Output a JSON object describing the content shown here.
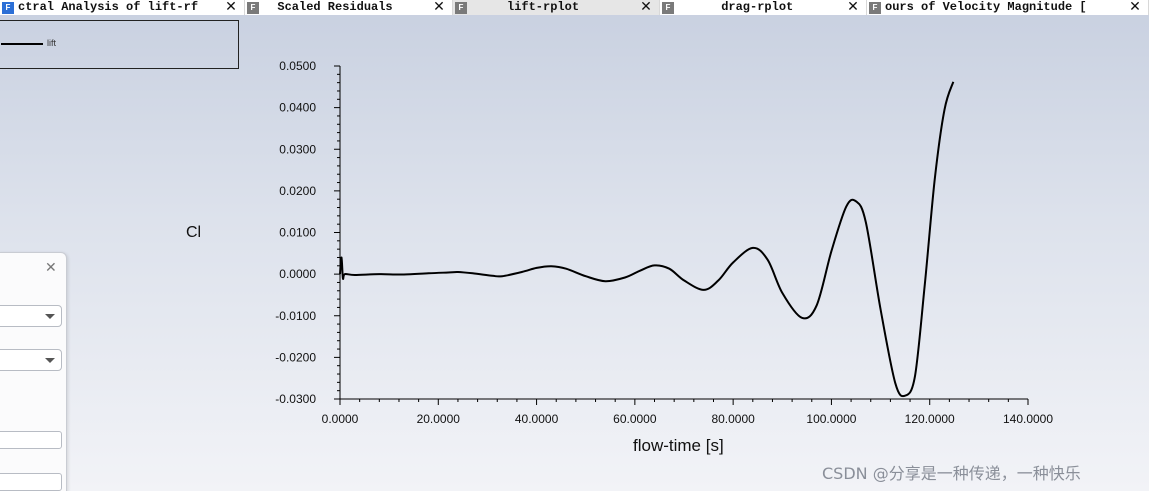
{
  "tabs": [
    {
      "label": "ctral Analysis of lift-rf",
      "icon": "fluent-window-icon",
      "icon_color": "#2b6fd6",
      "active": false
    },
    {
      "label": "  Scaled Residuals",
      "icon": "fluent-window-icon",
      "icon_color": "#7a7a7a",
      "active": false
    },
    {
      "label": "     lift-rplot",
      "icon": "fluent-window-icon",
      "icon_color": "#7a7a7a",
      "active": true
    },
    {
      "label": "      drag-rplot",
      "icon": "fluent-window-icon",
      "icon_color": "#7a7a7a",
      "active": false
    },
    {
      "label": "ours of Velocity Magnitude [",
      "icon": "fluent-window-icon",
      "icon_color": "#7a7a7a",
      "active": false
    }
  ],
  "tab_close_glyph": "✕",
  "icon_letter": "F",
  "legend": {
    "series_label": "lift"
  },
  "panel": {
    "close_glyph": "✕"
  },
  "watermark": "CSDN @分享是一种传递，一种快乐",
  "chart_data": {
    "type": "line",
    "xlabel": "flow-time [s]",
    "ylabel": "Cl",
    "xlim": [
      0,
      140
    ],
    "ylim": [
      -0.03,
      0.05
    ],
    "x_ticks": [
      "0.0000",
      "20.0000",
      "40.0000",
      "60.0000",
      "80.0000",
      "100.0000",
      "120.0000",
      "140.0000"
    ],
    "y_ticks": [
      "0.0500",
      "0.0400",
      "0.0300",
      "0.0200",
      "0.0100",
      "0.0000",
      "-0.0100",
      "-0.0200",
      "-0.0300"
    ],
    "series": [
      {
        "name": "lift",
        "color": "#000000",
        "x": [
          0,
          0.3,
          0.6,
          1,
          3,
          8,
          13,
          18,
          22,
          24,
          27,
          31,
          33,
          37,
          40,
          43,
          46,
          50,
          54,
          58,
          61,
          64,
          67,
          70,
          74,
          77,
          80,
          84,
          87,
          90,
          94,
          97,
          100,
          103,
          105,
          107,
          110,
          113,
          115,
          117,
          119,
          121,
          123,
          124.8
        ],
        "y": [
          0.0,
          0.004,
          -0.001,
          0.0,
          -0.0002,
          0.0,
          -0.0001,
          0.0002,
          0.0004,
          0.0005,
          0.0002,
          -0.0004,
          -0.0005,
          0.0005,
          0.0015,
          0.0019,
          0.0013,
          -0.0005,
          -0.0017,
          -0.0008,
          0.0008,
          0.0021,
          0.0013,
          -0.0015,
          -0.0038,
          -0.0015,
          0.0028,
          0.0063,
          0.0035,
          -0.0045,
          -0.0105,
          -0.0075,
          0.0055,
          0.0162,
          0.0175,
          0.0125,
          -0.0085,
          -0.0262,
          -0.0292,
          -0.0245,
          -0.0025,
          0.0225,
          0.0395,
          0.0462
        ]
      }
    ],
    "legend": "top-left",
    "grid": false
  }
}
